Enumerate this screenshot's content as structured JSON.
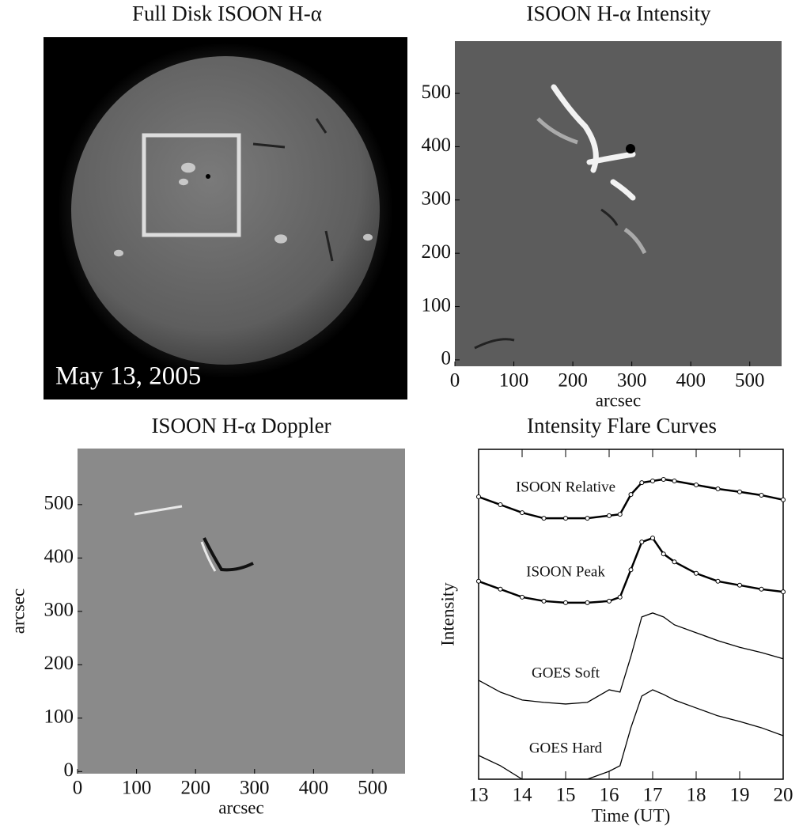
{
  "chart_data": [
    {
      "type": "image",
      "title": "Full Disk ISOON H-α",
      "annotation": "May 13, 2005"
    },
    {
      "type": "image",
      "title": "ISOON H-α Intensity",
      "xlabel": "arcsec",
      "xlim": [
        0,
        554
      ],
      "ylim": [
        -12,
        598
      ],
      "xticks": [
        0,
        100,
        200,
        300,
        400,
        500
      ],
      "yticks": [
        0,
        100,
        200,
        300,
        400,
        500
      ]
    },
    {
      "type": "image",
      "title": "ISOON H-α Doppler",
      "xlabel": "arcsec",
      "ylabel": "arcsec",
      "xlim": [
        0,
        555
      ],
      "ylim": [
        -4,
        605
      ],
      "xticks": [
        0,
        100,
        200,
        300,
        400,
        500
      ],
      "yticks": [
        0,
        100,
        200,
        300,
        400,
        500
      ]
    },
    {
      "type": "line",
      "title": "Intensity Flare Curves",
      "xlabel": "Time (UT)",
      "ylabel": "Intensity",
      "x": [
        13,
        13.5,
        14,
        14.5,
        15,
        15.5,
        16,
        16.25,
        16.5,
        16.75,
        17,
        17.25,
        17.5,
        18,
        18.5,
        19,
        19.5,
        20
      ],
      "xlim": [
        13,
        20
      ],
      "xticks": [
        13,
        14,
        15,
        16,
        17,
        18,
        19,
        20
      ],
      "ylim": [
        0,
        1
      ],
      "series": [
        {
          "name": "ISOON Relative",
          "color": "#000000",
          "marker": "circle",
          "values": [
            0.856,
            0.832,
            0.808,
            0.791,
            0.791,
            0.791,
            0.799,
            0.803,
            0.863,
            0.899,
            0.904,
            0.909,
            0.904,
            0.892,
            0.88,
            0.871,
            0.861,
            0.847
          ]
        },
        {
          "name": "ISOON Peak",
          "color": "#000000",
          "marker": "circle",
          "values": [
            0.6,
            0.576,
            0.552,
            0.54,
            0.535,
            0.535,
            0.54,
            0.552,
            0.635,
            0.719,
            0.731,
            0.683,
            0.659,
            0.624,
            0.6,
            0.588,
            0.576,
            0.568
          ]
        },
        {
          "name": "GOES Soft",
          "color": "#000000",
          "values": [
            0.3,
            0.264,
            0.24,
            0.233,
            0.228,
            0.233,
            0.271,
            0.264,
            0.372,
            0.492,
            0.504,
            0.492,
            0.468,
            0.444,
            0.42,
            0.4,
            0.384,
            0.365
          ]
        },
        {
          "name": "GOES Hard",
          "color": "#000000",
          "values": [
            0.072,
            0.041,
            0,
            0,
            0,
            0,
            0.024,
            0.041,
            0.156,
            0.252,
            0.271,
            0.257,
            0.24,
            0.216,
            0.192,
            0.175,
            0.156,
            0.132
          ]
        }
      ]
    }
  ]
}
